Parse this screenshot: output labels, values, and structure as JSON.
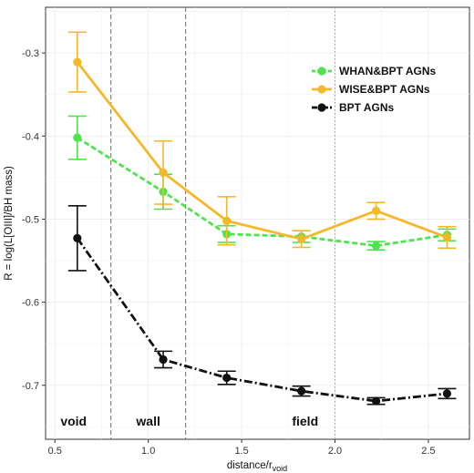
{
  "chart_data": {
    "type": "line",
    "xlabel": "distance/r",
    "xlabel_sub": "void",
    "ylabel": "R = log(L[OIII]/BH mass)",
    "xlim": [
      0.45,
      2.72
    ],
    "ylim": [
      -0.765,
      -0.245
    ],
    "xticks": [
      "0.5",
      "1.0",
      "1.5",
      "2.0",
      "2.5"
    ],
    "xtick_values": [
      0.5,
      1.0,
      1.5,
      2.0,
      2.5
    ],
    "yticks": [
      "-0.3",
      "-0.4",
      "-0.5",
      "-0.6",
      "-0.7"
    ],
    "ytick_values": [
      -0.3,
      -0.4,
      -0.5,
      -0.6,
      -0.7
    ],
    "grid": true,
    "legend_position": "top-right",
    "boundaries": [
      {
        "x": 0.8,
        "style": "dashed"
      },
      {
        "x": 1.2,
        "style": "dashed"
      },
      {
        "x": 2.0,
        "style": "dotted"
      }
    ],
    "regions": [
      {
        "label": "void",
        "x": 0.6
      },
      {
        "label": "wall",
        "x": 1.0
      },
      {
        "label": "field",
        "x": 1.84
      }
    ],
    "series": [
      {
        "name": "WHAN&BPT AGNs",
        "color": "#4ee44e",
        "line": "dashed",
        "x": [
          0.62,
          1.08,
          1.42,
          1.82,
          2.22,
          2.6
        ],
        "y": [
          -0.402,
          -0.467,
          -0.518,
          -0.521,
          -0.532,
          -0.519
        ],
        "err_low": [
          -0.428,
          -0.488,
          -0.528,
          -0.528,
          -0.537,
          -0.526
        ],
        "err_high": [
          -0.376,
          -0.446,
          -0.508,
          -0.514,
          -0.527,
          -0.512
        ]
      },
      {
        "name": "WISE&BPT AGNs",
        "color": "#f5b82a",
        "line": "solid",
        "x": [
          0.62,
          1.08,
          1.42,
          1.82,
          2.22,
          2.6
        ],
        "y": [
          -0.311,
          -0.444,
          -0.502,
          -0.524,
          -0.49,
          -0.522
        ],
        "err_low": [
          -0.347,
          -0.482,
          -0.531,
          -0.534,
          -0.5,
          -0.535
        ],
        "err_high": [
          -0.275,
          -0.406,
          -0.473,
          -0.514,
          -0.48,
          -0.509
        ]
      },
      {
        "name": "BPT AGNs",
        "color": "#111111",
        "line": "dashdot",
        "x": [
          0.62,
          1.08,
          1.42,
          1.82,
          2.22,
          2.6
        ],
        "y": [
          -0.523,
          -0.669,
          -0.691,
          -0.707,
          -0.719,
          -0.71
        ],
        "err_low": [
          -0.562,
          -0.679,
          -0.699,
          -0.713,
          -0.723,
          -0.716
        ],
        "err_high": [
          -0.484,
          -0.659,
          -0.683,
          -0.701,
          -0.715,
          -0.704
        ]
      }
    ]
  }
}
